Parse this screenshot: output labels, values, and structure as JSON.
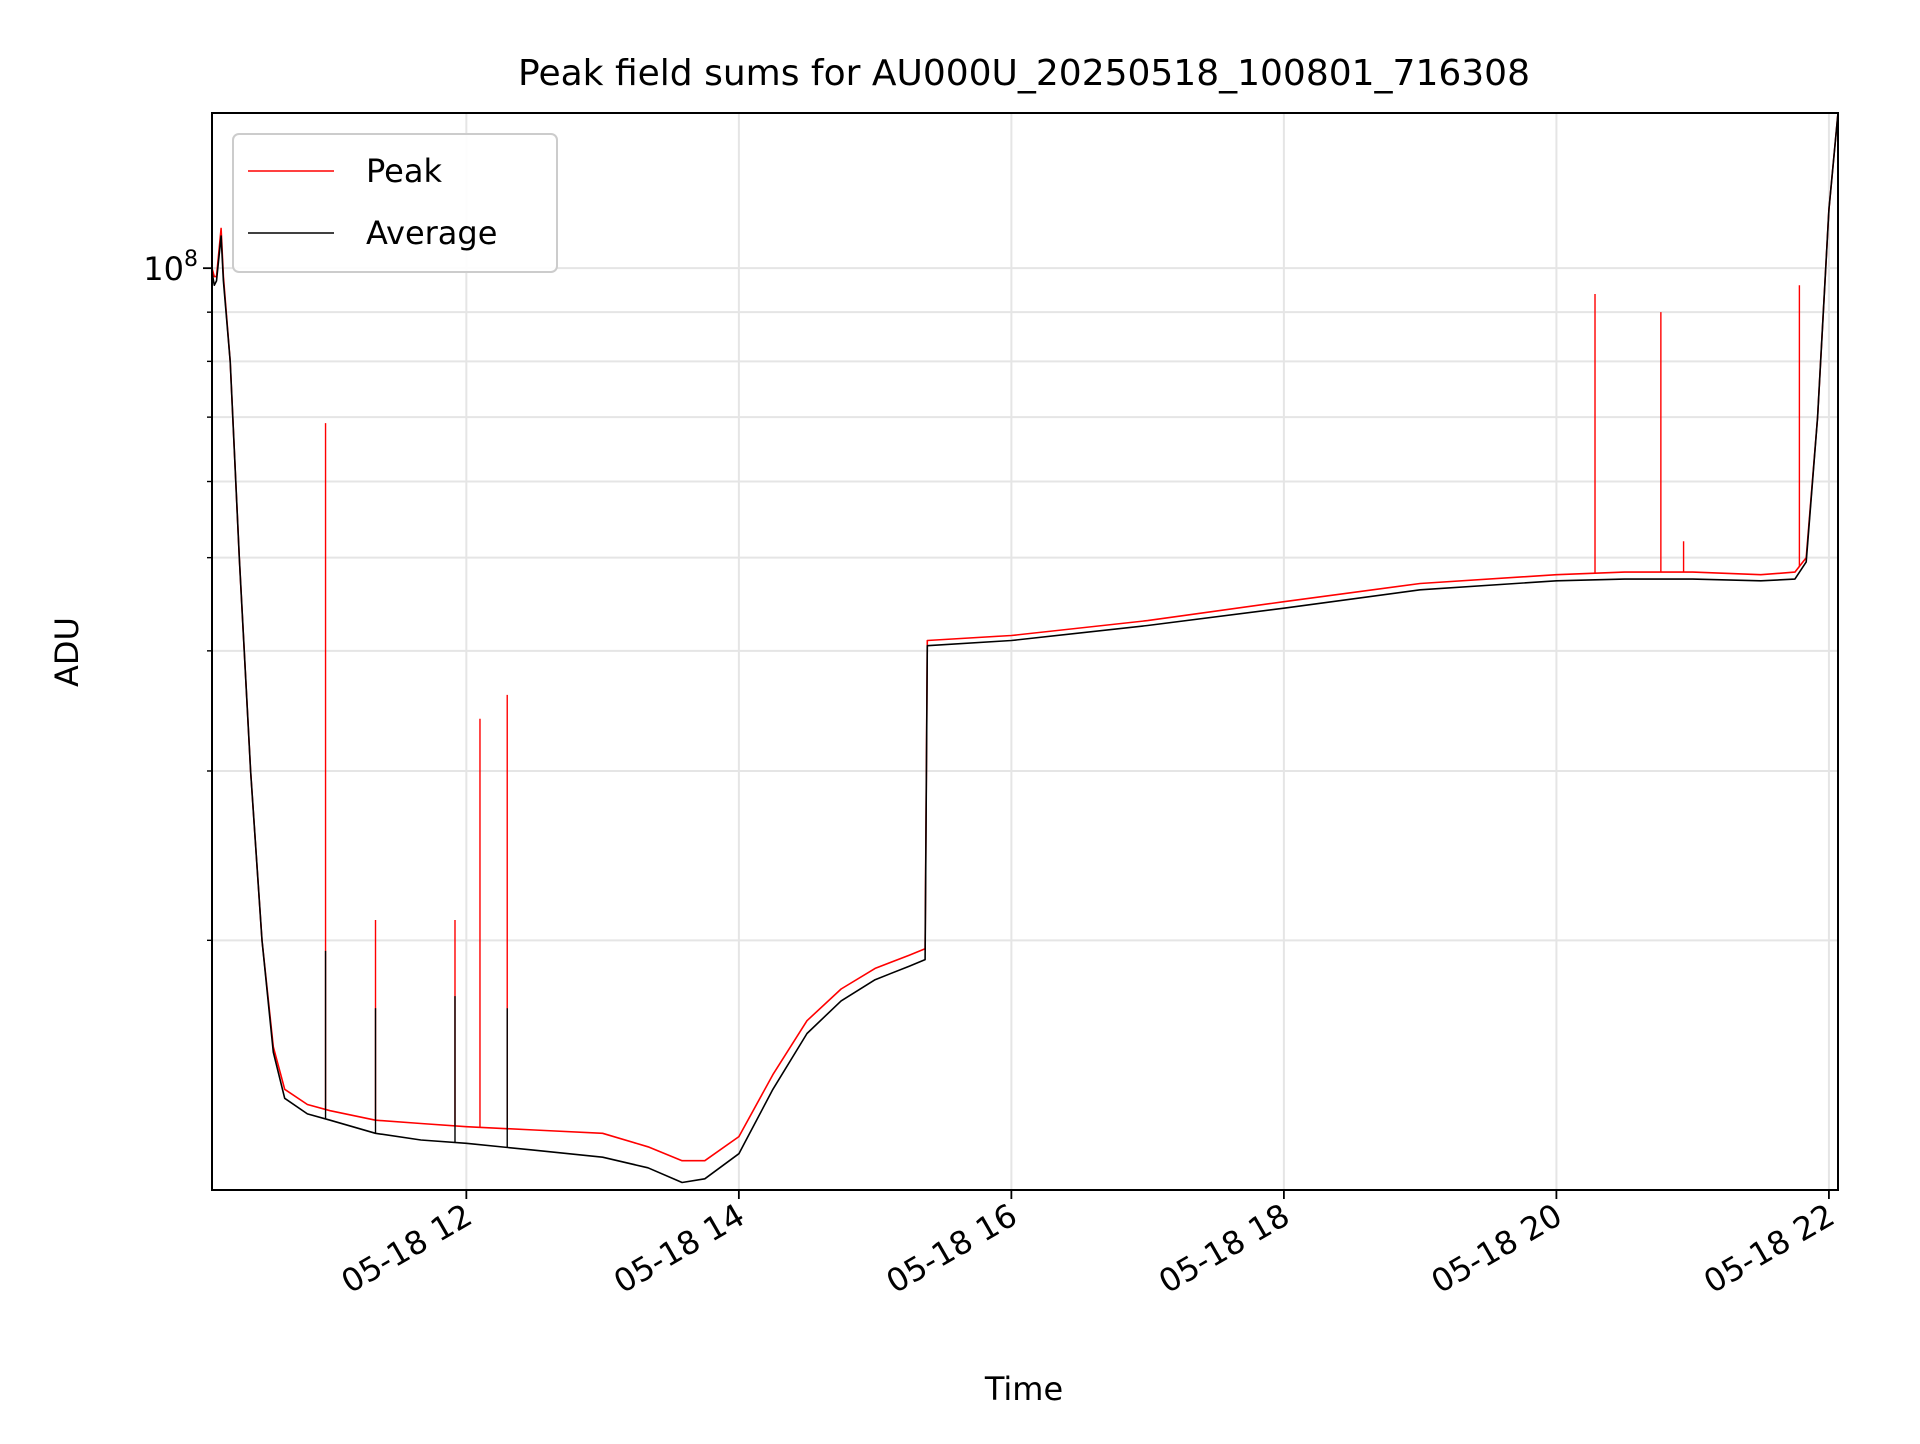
{
  "chart_data": {
    "type": "line",
    "title": "Peak field sums for AU000U_20250518_100801_716308",
    "xlabel": "Time",
    "ylabel": "ADU",
    "y_scale": "log",
    "grid": true,
    "legend_position": "top-left",
    "ylim": [
      11000000,
      145000000
    ],
    "xlim": [
      "05-18 10:08",
      "05-18 22:04"
    ],
    "x_ticks": [
      "05-18 12",
      "05-18 14",
      "05-18 16",
      "05-18 18",
      "05-18 20",
      "05-18 22"
    ],
    "y_tick_label": "10^8",
    "series": [
      {
        "name": "Peak",
        "color": "#ff0000",
        "x": [
          "05-18 10:08",
          "05-18 10:09",
          "05-18 10:10",
          "05-18 10:12",
          "05-18 10:13",
          "05-18 10:16",
          "05-18 10:20",
          "05-18 10:25",
          "05-18 10:30",
          "05-18 10:35",
          "05-18 10:40",
          "05-18 10:50",
          "05-18 11:00",
          "05-18 11:20",
          "05-18 11:40",
          "05-18 12:00",
          "05-18 12:30",
          "05-18 13:00",
          "05-18 13:20",
          "05-18 13:35",
          "05-18 13:45",
          "05-18 14:00",
          "05-18 14:15",
          "05-18 14:30",
          "05-18 14:45",
          "05-18 15:00",
          "05-18 15:15",
          "05-18 15:22",
          "05-18 15:23",
          "05-18 16:00",
          "05-18 17:00",
          "05-18 18:00",
          "05-18 19:00",
          "05-18 20:00",
          "05-18 20:30",
          "05-18 21:00",
          "05-18 21:30",
          "05-18 21:45",
          "05-18 21:50",
          "05-18 21:55",
          "05-18 22:00",
          "05-18 22:04"
        ],
        "y": [
          100000000,
          98000000,
          98000000,
          110000000,
          98000000,
          80000000,
          50000000,
          30000000,
          20000000,
          15500000,
          14000000,
          13500000,
          13300000,
          13000000,
          12900000,
          12800000,
          12700000,
          12600000,
          12200000,
          11800000,
          11800000,
          12500000,
          14500000,
          16500000,
          17800000,
          18700000,
          19300000,
          19600000,
          41000000,
          41500000,
          43000000,
          45000000,
          47000000,
          48000000,
          48300000,
          48300000,
          48000000,
          48300000,
          50000000,
          70000000,
          115000000,
          145000000
        ],
        "spikes": [
          {
            "x": "05-18 10:58",
            "y": 69000000
          },
          {
            "x": "05-18 11:20",
            "y": 21000000
          },
          {
            "x": "05-18 11:55",
            "y": 21000000
          },
          {
            "x": "05-18 12:06",
            "y": 34000000
          },
          {
            "x": "05-18 12:18",
            "y": 36000000
          },
          {
            "x": "05-18 20:17",
            "y": 94000000
          },
          {
            "x": "05-18 20:46",
            "y": 90000000
          },
          {
            "x": "05-18 20:56",
            "y": 52000000
          },
          {
            "x": "05-18 21:47",
            "y": 96000000
          }
        ]
      },
      {
        "name": "Average",
        "color": "#000000",
        "x": [
          "05-18 10:08",
          "05-18 10:09",
          "05-18 10:10",
          "05-18 10:12",
          "05-18 10:13",
          "05-18 10:16",
          "05-18 10:20",
          "05-18 10:25",
          "05-18 10:30",
          "05-18 10:35",
          "05-18 10:40",
          "05-18 10:50",
          "05-18 11:00",
          "05-18 11:20",
          "05-18 11:40",
          "05-18 12:00",
          "05-18 12:30",
          "05-18 13:00",
          "05-18 13:20",
          "05-18 13:35",
          "05-18 13:45",
          "05-18 14:00",
          "05-18 14:15",
          "05-18 14:30",
          "05-18 14:45",
          "05-18 15:00",
          "05-18 15:15",
          "05-18 15:22",
          "05-18 15:23",
          "05-18 16:00",
          "05-18 17:00",
          "05-18 18:00",
          "05-18 19:00",
          "05-18 20:00",
          "05-18 20:30",
          "05-18 21:00",
          "05-18 21:30",
          "05-18 21:45",
          "05-18 21:50",
          "05-18 21:55",
          "05-18 22:00",
          "05-18 22:04"
        ],
        "y": [
          99000000,
          96000000,
          97000000,
          108000000,
          97000000,
          80000000,
          50000000,
          30000000,
          20000000,
          15300000,
          13700000,
          13200000,
          13000000,
          12600000,
          12400000,
          12300000,
          12100000,
          11900000,
          11600000,
          11200000,
          11300000,
          12000000,
          14000000,
          16000000,
          17300000,
          18200000,
          18800000,
          19100000,
          40500000,
          41000000,
          42500000,
          44300000,
          46300000,
          47300000,
          47500000,
          47500000,
          47300000,
          47500000,
          49500000,
          70000000,
          115000000,
          145000000
        ],
        "spikes": [
          {
            "x": "05-18 10:58",
            "y": 19500000
          },
          {
            "x": "05-18 11:20",
            "y": 17000000
          },
          {
            "x": "05-18 11:55",
            "y": 17500000
          },
          {
            "x": "05-18 12:18",
            "y": 17000000
          }
        ]
      }
    ]
  }
}
